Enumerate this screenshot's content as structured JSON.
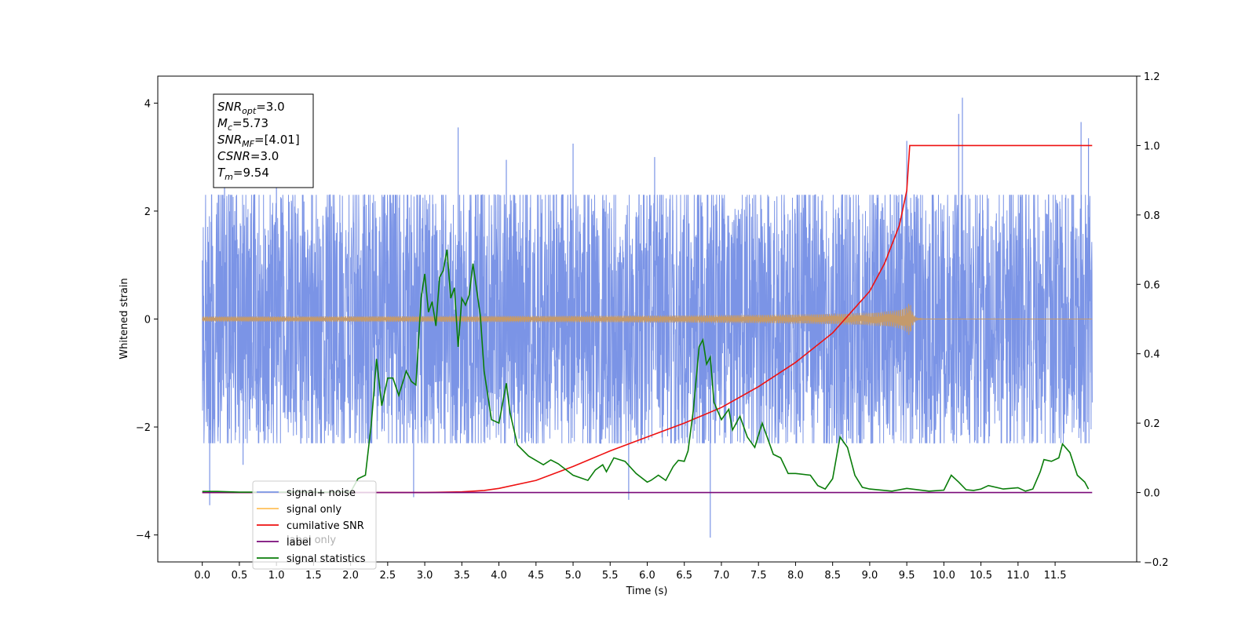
{
  "chart_data": {
    "type": "line",
    "xlabel": "Time (s)",
    "ylabel": "Whitened strain",
    "xlim": [
      -0.6,
      12.6
    ],
    "ylim": [
      -4.5,
      4.5
    ],
    "y2lim": [
      -0.2,
      1.2
    ],
    "x_ticks": [
      "0.0",
      "0.5",
      "1.0",
      "1.5",
      "2.0",
      "2.5",
      "3.0",
      "3.5",
      "4.0",
      "4.5",
      "5.0",
      "5.5",
      "6.0",
      "6.5",
      "7.0",
      "7.5",
      "8.0",
      "8.5",
      "9.0",
      "9.5",
      "10.0",
      "10.5",
      "11.0",
      "11.5"
    ],
    "x_tick_values": [
      0,
      0.5,
      1,
      1.5,
      2,
      2.5,
      3,
      3.5,
      4,
      4.5,
      5,
      5.5,
      6,
      6.5,
      7,
      7.5,
      8,
      8.5,
      9,
      9.5,
      10,
      10.5,
      11,
      11.5
    ],
    "y_ticks": [
      "4",
      "2",
      "0",
      "−2",
      "−4"
    ],
    "y_tick_values": [
      4,
      2,
      0,
      -2,
      -4
    ],
    "y2_ticks": [
      "1.2",
      "1.0",
      "0.8",
      "0.6",
      "0.4",
      "0.2",
      "0.0",
      "−0.2"
    ],
    "y2_tick_values": [
      1.2,
      1.0,
      0.8,
      0.6,
      0.4,
      0.2,
      0.0,
      -0.2
    ],
    "grid": false,
    "legend_position": "lower-left",
    "annotation": {
      "lines": [
        {
          "base": "SNR",
          "sub": "opt",
          "value": "=3.0"
        },
        {
          "base": "M",
          "sub": "c",
          "value": "=5.73"
        },
        {
          "base": "SNR",
          "sub": "MF",
          "value": "=[4.01]"
        },
        {
          "base": "CSNR",
          "sub": "",
          "value": "=3.0"
        },
        {
          "base": "T",
          "sub": "m",
          "value": "=9.54"
        }
      ]
    },
    "series": [
      {
        "name": "signal+ noise",
        "axis": "left",
        "color": "#7b94e6",
        "render": "noise-band",
        "x_range": [
          0,
          12
        ],
        "typical_envelope": [
          -1.9,
          1.9
        ],
        "peaks": [
          {
            "x": 0.1,
            "y": -3.45
          },
          {
            "x": 0.3,
            "y": 2.7
          },
          {
            "x": 0.55,
            "y": -2.7
          },
          {
            "x": 1.0,
            "y": 2.5
          },
          {
            "x": 2.85,
            "y": -3.3
          },
          {
            "x": 3.45,
            "y": 3.55
          },
          {
            "x": 4.1,
            "y": 2.95
          },
          {
            "x": 5.0,
            "y": 3.25
          },
          {
            "x": 5.75,
            "y": -3.35
          },
          {
            "x": 6.1,
            "y": 3.0
          },
          {
            "x": 6.85,
            "y": -4.05
          },
          {
            "x": 9.5,
            "y": 3.3
          },
          {
            "x": 10.2,
            "y": 3.8
          },
          {
            "x": 10.25,
            "y": 4.1
          },
          {
            "x": 11.85,
            "y": 3.65
          },
          {
            "x": 11.95,
            "y": 3.35
          }
        ]
      },
      {
        "name": "signal only",
        "axis": "left",
        "color": "#c49a6c",
        "legend_color": "#ffc15a",
        "render": "chirp",
        "x_range": [
          0,
          12
        ],
        "merger_time": 9.54,
        "amplitude_at_merger": 0.35
      },
      {
        "name": "cumilative SNR",
        "axis": "right",
        "color": "#ee1111",
        "x": [
          0,
          1,
          2,
          2.5,
          3,
          3.5,
          3.8,
          4.0,
          4.5,
          5.0,
          5.5,
          6.0,
          6.5,
          7.0,
          7.5,
          8.0,
          8.5,
          9.0,
          9.2,
          9.4,
          9.5,
          9.54,
          10.0,
          11.0,
          12.0
        ],
        "y": [
          0,
          0,
          0,
          0,
          0,
          0.002,
          0.006,
          0.012,
          0.035,
          0.075,
          0.12,
          0.16,
          0.2,
          0.245,
          0.305,
          0.375,
          0.46,
          0.58,
          0.66,
          0.77,
          0.87,
          1.0,
          1.0,
          1.0,
          1.0
        ]
      },
      {
        "name": "label",
        "axis": "right",
        "color": "#7a0a78",
        "x": [
          0,
          12
        ],
        "y": [
          0,
          0
        ]
      },
      {
        "name": "signal statistics",
        "axis": "right",
        "color": "#0a7d0a",
        "x": [
          0,
          0.2,
          0.5,
          1.0,
          1.5,
          2.0,
          2.1,
          2.2,
          2.28,
          2.35,
          2.42,
          2.5,
          2.57,
          2.65,
          2.75,
          2.82,
          2.88,
          2.95,
          3.0,
          3.05,
          3.1,
          3.15,
          3.2,
          3.25,
          3.3,
          3.35,
          3.4,
          3.45,
          3.5,
          3.55,
          3.6,
          3.65,
          3.75,
          3.8,
          3.9,
          4.0,
          4.1,
          4.15,
          4.25,
          4.4,
          4.6,
          4.7,
          4.8,
          5.0,
          5.2,
          5.3,
          5.4,
          5.45,
          5.55,
          5.7,
          5.85,
          6.0,
          6.05,
          6.15,
          6.25,
          6.35,
          6.42,
          6.5,
          6.55,
          6.62,
          6.7,
          6.75,
          6.8,
          6.85,
          6.9,
          7.0,
          7.1,
          7.15,
          7.25,
          7.35,
          7.45,
          7.55,
          7.7,
          7.8,
          7.9,
          8.0,
          8.2,
          8.3,
          8.4,
          8.5,
          8.6,
          8.7,
          8.8,
          8.9,
          9.0,
          9.3,
          9.5,
          9.8,
          10.0,
          10.1,
          10.2,
          10.3,
          10.4,
          10.5,
          10.6,
          10.8,
          11.0,
          11.1,
          11.2,
          11.3,
          11.35,
          11.45,
          11.55,
          11.6,
          11.7,
          11.8,
          11.9,
          11.95
        ],
        "y": [
          0.003,
          0.003,
          0.001,
          0.001,
          0.001,
          0.001,
          0.04,
          0.05,
          0.2,
          0.385,
          0.25,
          0.33,
          0.33,
          0.28,
          0.35,
          0.32,
          0.31,
          0.56,
          0.63,
          0.52,
          0.55,
          0.48,
          0.62,
          0.64,
          0.7,
          0.56,
          0.59,
          0.42,
          0.56,
          0.54,
          0.57,
          0.66,
          0.51,
          0.35,
          0.21,
          0.2,
          0.315,
          0.23,
          0.137,
          0.105,
          0.08,
          0.094,
          0.083,
          0.05,
          0.035,
          0.065,
          0.08,
          0.06,
          0.1,
          0.09,
          0.055,
          0.03,
          0.035,
          0.05,
          0.035,
          0.075,
          0.093,
          0.09,
          0.12,
          0.235,
          0.42,
          0.44,
          0.37,
          0.39,
          0.26,
          0.21,
          0.24,
          0.18,
          0.22,
          0.16,
          0.13,
          0.2,
          0.11,
          0.1,
          0.055,
          0.055,
          0.05,
          0.02,
          0.01,
          0.04,
          0.16,
          0.13,
          0.05,
          0.015,
          0.01,
          0.004,
          0.012,
          0.004,
          0.007,
          0.05,
          0.03,
          0.008,
          0.006,
          0.01,
          0.02,
          0.01,
          0.014,
          0.004,
          0.01,
          0.06,
          0.095,
          0.09,
          0.1,
          0.14,
          0.115,
          0.05,
          0.03,
          0.01
        ]
      }
    ],
    "hidden_legend_entry": "label only"
  }
}
